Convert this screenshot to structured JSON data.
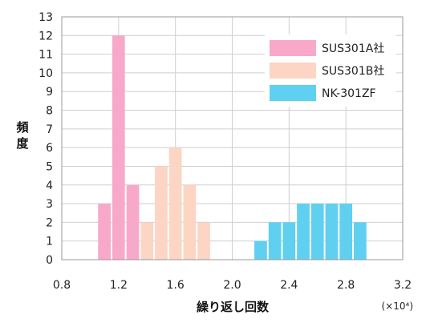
{
  "chart_data": {
    "type": "bar",
    "xlabel": "繰り返し回数",
    "x_unit": "(×10⁴)",
    "ylabel": "頻度",
    "xlim": [
      0.8,
      3.2
    ],
    "ylim": [
      0,
      13
    ],
    "xticks": [
      "0.8",
      "1.2",
      "1.6",
      "2.0",
      "2.4",
      "2.8",
      "3.2"
    ],
    "yticks": [
      "0",
      "1",
      "2",
      "3",
      "4",
      "5",
      "6",
      "7",
      "8",
      "9",
      "10",
      "11",
      "12",
      "13"
    ],
    "bin_width": 0.1,
    "grid": true,
    "legend_position": "top-right",
    "series": [
      {
        "name": "SUS301A社",
        "color": "#f8a9c9",
        "bins": [
          {
            "x": 1.1,
            "value": 3
          },
          {
            "x": 1.2,
            "value": 12
          },
          {
            "x": 1.3,
            "value": 4
          }
        ]
      },
      {
        "name": "SUS301B社",
        "color": "#fcd5c4",
        "bins": [
          {
            "x": 1.4,
            "value": 2
          },
          {
            "x": 1.5,
            "value": 5
          },
          {
            "x": 1.6,
            "value": 6
          },
          {
            "x": 1.7,
            "value": 4
          },
          {
            "x": 1.8,
            "value": 2
          }
        ]
      },
      {
        "name": "NK-301ZF",
        "color": "#60d0f0",
        "bins": [
          {
            "x": 2.2,
            "value": 1
          },
          {
            "x": 2.3,
            "value": 2
          },
          {
            "x": 2.4,
            "value": 2
          },
          {
            "x": 2.5,
            "value": 3
          },
          {
            "x": 2.6,
            "value": 3
          },
          {
            "x": 2.7,
            "value": 3
          },
          {
            "x": 2.8,
            "value": 3
          },
          {
            "x": 2.9,
            "value": 2
          }
        ]
      }
    ]
  }
}
